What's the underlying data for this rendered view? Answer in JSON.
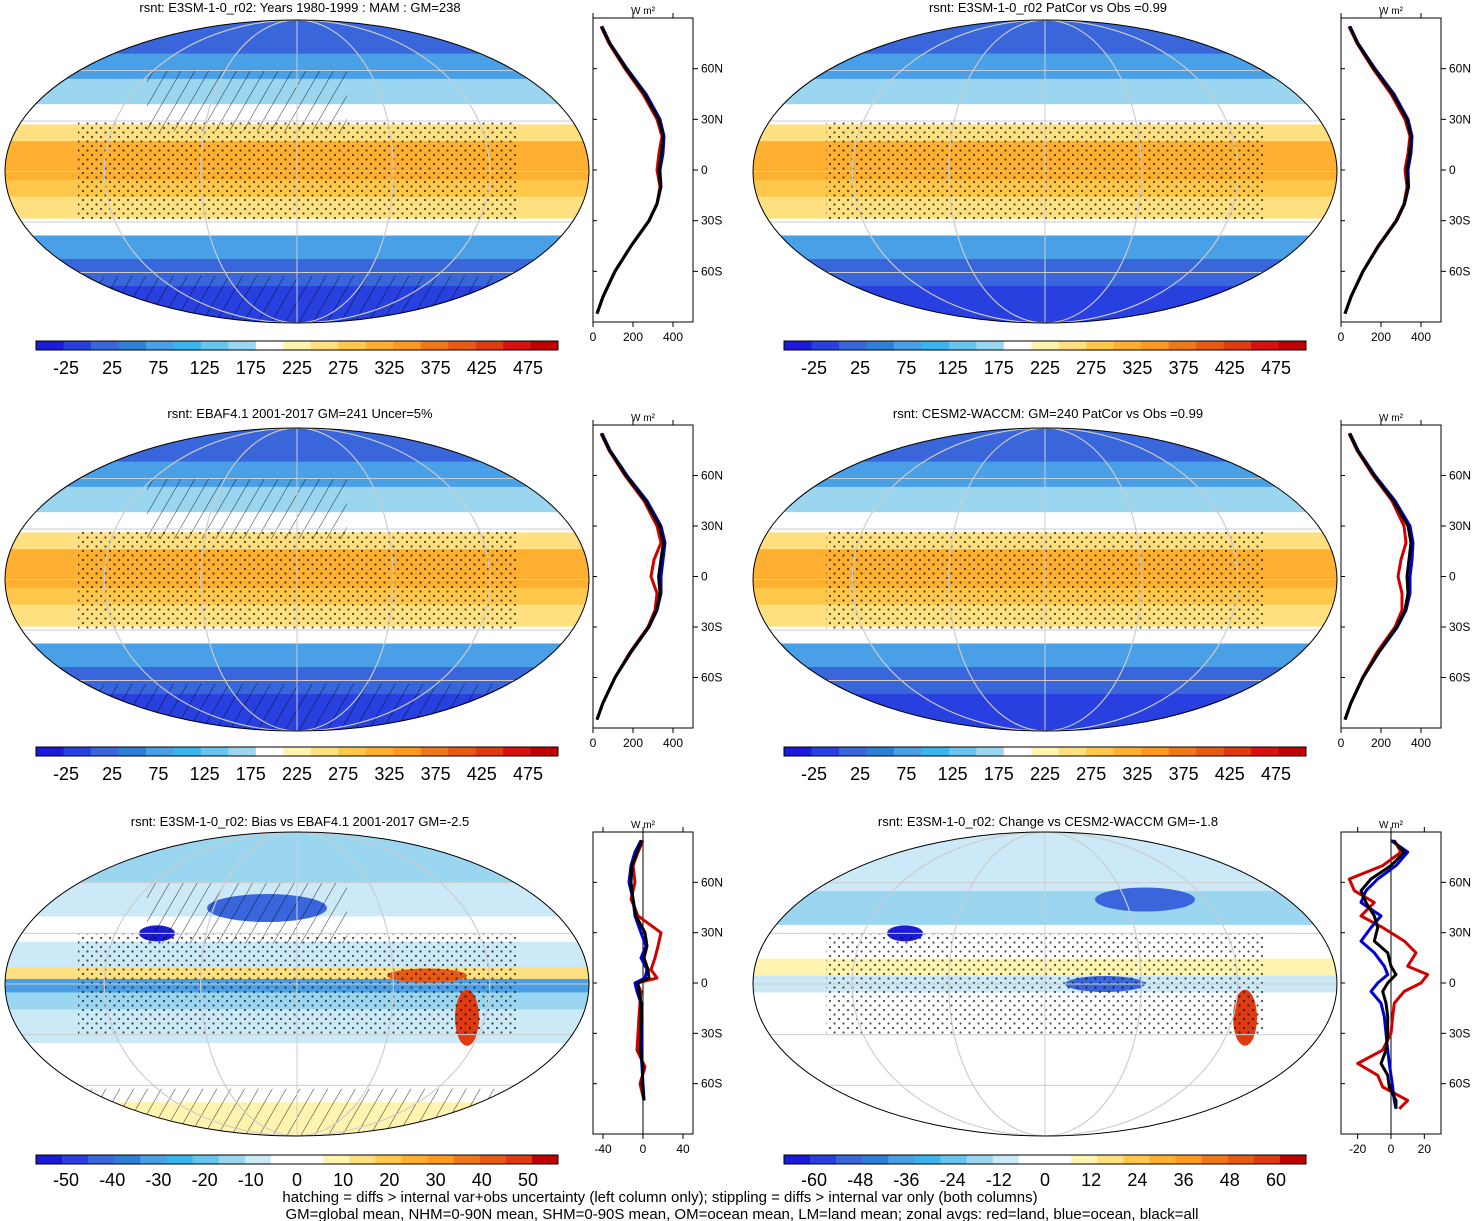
{
  "chart_data": [
    {
      "type": "heatmap",
      "title": "rsnt: E3SM-1-0_r02: Years 1980-1999 : MAM : GM=238",
      "map_style": "full",
      "colorbar_ticks": [
        "-25",
        "25",
        "75",
        "125",
        "175",
        "225",
        "275",
        "325",
        "375",
        "425",
        "475"
      ],
      "colorbar_palette": "full",
      "zonal": {
        "unit_label": "W m²",
        "x_ticks": [
          "0",
          "200",
          "400"
        ],
        "xlim": [
          0,
          500
        ],
        "lat_ticks": [
          "60N",
          "30N",
          "0",
          "30S",
          "60S"
        ],
        "series": [
          {
            "color": "#d00000",
            "lat": [
              85,
              75,
              60,
              45,
              30,
              20,
              10,
              0,
              -10,
              -20,
              -30,
              -45,
              -60,
              -75,
              -85
            ],
            "values": [
              40,
              80,
              160,
              250,
              320,
              345,
              330,
              320,
              335,
              320,
              280,
              190,
              110,
              50,
              20
            ]
          },
          {
            "color": "#0000d0",
            "lat": [
              85,
              75,
              60,
              45,
              30,
              20,
              10,
              0,
              -10,
              -20,
              -30,
              -45,
              -60,
              -75,
              -85
            ],
            "values": [
              45,
              85,
              170,
              265,
              335,
              355,
              350,
              335,
              340,
              320,
              280,
              190,
              110,
              50,
              20
            ]
          },
          {
            "color": "#000000",
            "lat": [
              85,
              75,
              60,
              45,
              30,
              20,
              10,
              0,
              -10,
              -20,
              -30,
              -45,
              -60,
              -75,
              -85
            ],
            "values": [
              42,
              83,
              165,
              258,
              328,
              350,
              342,
              330,
              338,
              320,
              280,
              190,
              110,
              50,
              20
            ]
          }
        ]
      }
    },
    {
      "type": "heatmap",
      "title": "rsnt: E3SM-1-0_r02 PatCor vs Obs =0.99",
      "map_style": "full",
      "colorbar_ticks": [
        "-25",
        "25",
        "75",
        "125",
        "175",
        "225",
        "275",
        "325",
        "375",
        "425",
        "475"
      ],
      "colorbar_palette": "full",
      "zonal": {
        "unit_label": "W m²",
        "x_ticks": [
          "0",
          "200",
          "400"
        ],
        "xlim": [
          0,
          500
        ],
        "lat_ticks": [
          "60N",
          "30N",
          "0",
          "30S",
          "60S"
        ],
        "series": [
          {
            "color": "#d00000",
            "lat": [
              85,
              75,
              60,
              45,
              30,
              20,
              10,
              0,
              -10,
              -20,
              -30,
              -45,
              -60,
              -75,
              -85
            ],
            "values": [
              40,
              80,
              160,
              250,
              320,
              345,
              335,
              320,
              330,
              315,
              275,
              185,
              110,
              50,
              20
            ]
          },
          {
            "color": "#0000d0",
            "lat": [
              85,
              75,
              60,
              45,
              30,
              20,
              10,
              0,
              -10,
              -20,
              -30,
              -45,
              -60,
              -75,
              -85
            ],
            "values": [
              45,
              85,
              170,
              265,
              335,
              355,
              350,
              335,
              338,
              318,
              278,
              188,
              110,
              50,
              20
            ]
          },
          {
            "color": "#000000",
            "lat": [
              85,
              75,
              60,
              45,
              30,
              20,
              10,
              0,
              -10,
              -20,
              -30,
              -45,
              -60,
              -75,
              -85
            ],
            "values": [
              42,
              83,
              165,
              258,
              328,
              350,
              343,
              328,
              335,
              317,
              277,
              187,
              110,
              50,
              20
            ]
          }
        ]
      }
    },
    {
      "type": "heatmap",
      "title": "rsnt: EBAF4.1 2001-2017 GM=241 Uncer=5%",
      "map_style": "full",
      "colorbar_ticks": [
        "-25",
        "25",
        "75",
        "125",
        "175",
        "225",
        "275",
        "325",
        "375",
        "425",
        "475"
      ],
      "colorbar_palette": "full",
      "zonal": {
        "unit_label": "W m²",
        "x_ticks": [
          "0",
          "200",
          "400"
        ],
        "xlim": [
          0,
          500
        ],
        "lat_ticks": [
          "60N",
          "30N",
          "0",
          "30S",
          "60S"
        ],
        "series": [
          {
            "color": "#d00000",
            "lat": [
              85,
              75,
              60,
              45,
              30,
              20,
              10,
              0,
              -10,
              -20,
              -30,
              -45,
              -60,
              -75,
              -85
            ],
            "values": [
              40,
              80,
              160,
              255,
              320,
              340,
              305,
              290,
              320,
              310,
              275,
              185,
              110,
              50,
              20
            ]
          },
          {
            "color": "#0000d0",
            "lat": [
              85,
              75,
              60,
              45,
              30,
              20,
              10,
              0,
              -10,
              -20,
              -30,
              -45,
              -60,
              -75,
              -85
            ],
            "values": [
              45,
              85,
              170,
              270,
              340,
              360,
              350,
              340,
              340,
              320,
              280,
              190,
              110,
              50,
              20
            ]
          },
          {
            "color": "#000000",
            "lat": [
              85,
              75,
              60,
              45,
              30,
              20,
              10,
              0,
              -10,
              -20,
              -30,
              -45,
              -60,
              -75,
              -85
            ],
            "values": [
              42,
              83,
              165,
              262,
              332,
              352,
              340,
              328,
              335,
              318,
              278,
              188,
              110,
              50,
              20
            ]
          }
        ]
      }
    },
    {
      "type": "heatmap",
      "title": "rsnt: CESM2-WACCM: GM=240 PatCor vs Obs =0.99",
      "map_style": "full",
      "colorbar_ticks": [
        "-25",
        "25",
        "75",
        "125",
        "175",
        "225",
        "275",
        "325",
        "375",
        "425",
        "475"
      ],
      "colorbar_palette": "full",
      "zonal": {
        "unit_label": "W m²",
        "x_ticks": [
          "0",
          "200",
          "400"
        ],
        "xlim": [
          0,
          500
        ],
        "lat_ticks": [
          "60N",
          "30N",
          "0",
          "30S",
          "60S"
        ],
        "series": [
          {
            "color": "#d00000",
            "lat": [
              85,
              75,
              60,
              45,
              30,
              20,
              10,
              0,
              -10,
              -20,
              -30,
              -45,
              -60,
              -75,
              -85
            ],
            "values": [
              40,
              80,
              160,
              255,
              315,
              325,
              300,
              285,
              305,
              305,
              270,
              180,
              108,
              50,
              20
            ]
          },
          {
            "color": "#0000d0",
            "lat": [
              85,
              75,
              60,
              45,
              30,
              20,
              10,
              0,
              -10,
              -20,
              -30,
              -45,
              -60,
              -75,
              -85
            ],
            "values": [
              45,
              85,
              170,
              270,
              345,
              360,
              355,
              345,
              345,
              325,
              282,
              190,
              110,
              50,
              20
            ]
          },
          {
            "color": "#000000",
            "lat": [
              85,
              75,
              60,
              45,
              30,
              20,
              10,
              0,
              -10,
              -20,
              -30,
              -45,
              -60,
              -75,
              -85
            ],
            "values": [
              42,
              83,
              165,
              262,
              335,
              350,
              340,
              330,
              335,
              320,
              278,
              188,
              110,
              50,
              20
            ]
          }
        ]
      }
    },
    {
      "type": "heatmap",
      "title": "rsnt: E3SM-1-0_r02: Bias vs EBAF4.1 2001-2017 GM=-2.5",
      "map_style": "diff",
      "colorbar_ticks": [
        "-50",
        "-40",
        "-30",
        "-20",
        "-10",
        "0",
        "10",
        "20",
        "30",
        "40",
        "50"
      ],
      "colorbar_palette": "diff",
      "zonal": {
        "unit_label": "W m²",
        "x_ticks": [
          "-40",
          "0",
          "40"
        ],
        "xlim": [
          -50,
          50
        ],
        "lat_ticks": [
          "60N",
          "30N",
          "0",
          "30S",
          "60S"
        ],
        "series": [
          {
            "color": "#d00000",
            "lat": [
              85,
              78,
              70,
              60,
              50,
              40,
              30,
              22,
              15,
              8,
              3,
              0,
              -5,
              -12,
              -20,
              -30,
              -40,
              -50,
              -60,
              -70
            ],
            "values": [
              0,
              -5,
              -10,
              -8,
              -12,
              -5,
              18,
              15,
              12,
              8,
              14,
              -6,
              -2,
              -3,
              -4,
              -5,
              -6,
              2,
              -3,
              1
            ]
          },
          {
            "color": "#0000d0",
            "lat": [
              85,
              78,
              70,
              60,
              50,
              40,
              30,
              22,
              15,
              8,
              3,
              0,
              -5,
              -12,
              -20,
              -30,
              -40,
              -50,
              -60,
              -70
            ],
            "values": [
              -2,
              -8,
              -12,
              -14,
              -10,
              -8,
              -2,
              3,
              -2,
              4,
              2,
              -8,
              -6,
              -2,
              -2,
              -1,
              -2,
              -1,
              0,
              1
            ]
          },
          {
            "color": "#000000",
            "lat": [
              85,
              78,
              70,
              60,
              50,
              40,
              30,
              22,
              15,
              8,
              3,
              0,
              -5,
              -12,
              -20,
              -30,
              -40,
              -50,
              -60,
              -70
            ],
            "values": [
              -1,
              -6,
              -11,
              -12,
              -10,
              -7,
              2,
              4,
              1,
              5,
              6,
              -5,
              -4,
              -2,
              -2,
              -2,
              -3,
              0,
              -1,
              1
            ]
          }
        ]
      }
    },
    {
      "type": "heatmap",
      "title": "rsnt: E3SM-1-0_r02: Change vs CESM2-WACCM GM=-1.8",
      "map_style": "change",
      "colorbar_ticks": [
        "-60",
        "-48",
        "-36",
        "-24",
        "-12",
        "0",
        "12",
        "24",
        "36",
        "48",
        "60"
      ],
      "colorbar_palette": "diff",
      "zonal": {
        "unit_label": "W m²",
        "x_ticks": [
          "-20",
          "0",
          "20"
        ],
        "xlim": [
          -30,
          30
        ],
        "lat_ticks": [
          "60N",
          "30N",
          "0",
          "30S",
          "60S"
        ],
        "series": [
          {
            "color": "#d00000",
            "lat": [
              85,
              78,
              70,
              62,
              55,
              48,
              40,
              33,
              25,
              18,
              10,
              5,
              0,
              -5,
              -12,
              -20,
              -30,
              -40,
              -48,
              -55,
              -62,
              -70,
              -75
            ],
            "values": [
              2,
              6,
              -5,
              -25,
              -22,
              -10,
              -18,
              -5,
              8,
              15,
              10,
              22,
              18,
              8,
              2,
              1,
              0,
              -5,
              -20,
              -8,
              -5,
              10,
              5
            ]
          },
          {
            "color": "#0000d0",
            "lat": [
              85,
              78,
              70,
              62,
              55,
              48,
              40,
              33,
              25,
              18,
              10,
              5,
              0,
              -5,
              -12,
              -20,
              -30,
              -40,
              -48,
              -55,
              -62,
              -70,
              -75
            ],
            "values": [
              0,
              10,
              3,
              -8,
              -15,
              -18,
              -6,
              -12,
              -18,
              -10,
              -4,
              -2,
              -8,
              -12,
              -6,
              -4,
              -3,
              -2,
              -1,
              0,
              1,
              2,
              3
            ]
          },
          {
            "color": "#000000",
            "lat": [
              85,
              78,
              70,
              62,
              55,
              48,
              40,
              33,
              25,
              18,
              10,
              5,
              0,
              -5,
              -12,
              -20,
              -30,
              -40,
              -48,
              -55,
              -62,
              -70,
              -75
            ],
            "values": [
              1,
              8,
              0,
              -12,
              -18,
              -15,
              -10,
              -8,
              -10,
              -2,
              0,
              3,
              -2,
              -5,
              -3,
              -2,
              -2,
              -3,
              -6,
              -2,
              -1,
              3,
              3
            ]
          }
        ]
      }
    }
  ],
  "footer": {
    "line1": "hatching = diffs > internal var+obs uncertainty (left column only); stippling = diffs > internal var only (both columns)",
    "line2": "GM=global mean, NHM=0-90N mean, SHM=0-90S mean, OM=ocean mean, LM=land mean; zonal avgs: red=land, blue=ocean, black=all"
  },
  "palettes": {
    "full": [
      "#1a1ad8",
      "#2840e0",
      "#3a66dc",
      "#2f7fd8",
      "#4aa0e6",
      "#3ab4ec",
      "#66c6ee",
      "#9ad6ef",
      "#ffffff",
      "#fff3b0",
      "#ffe080",
      "#ffc84a",
      "#ffb030",
      "#ff9a1e",
      "#f07818",
      "#e85a14",
      "#e03a10",
      "#d81010",
      "#c00000"
    ],
    "diff": [
      "#1a1ad8",
      "#2840e0",
      "#3a66dc",
      "#2f7fd8",
      "#4aa0e6",
      "#3ab4ec",
      "#66c6ee",
      "#9ad6ef",
      "#cbe9f7",
      "#ffffff",
      "#ffffff",
      "#fff3b0",
      "#ffe080",
      "#ffc84a",
      "#ffb030",
      "#ff9a1e",
      "#f07818",
      "#e85a14",
      "#e03a10",
      "#c00000"
    ]
  }
}
